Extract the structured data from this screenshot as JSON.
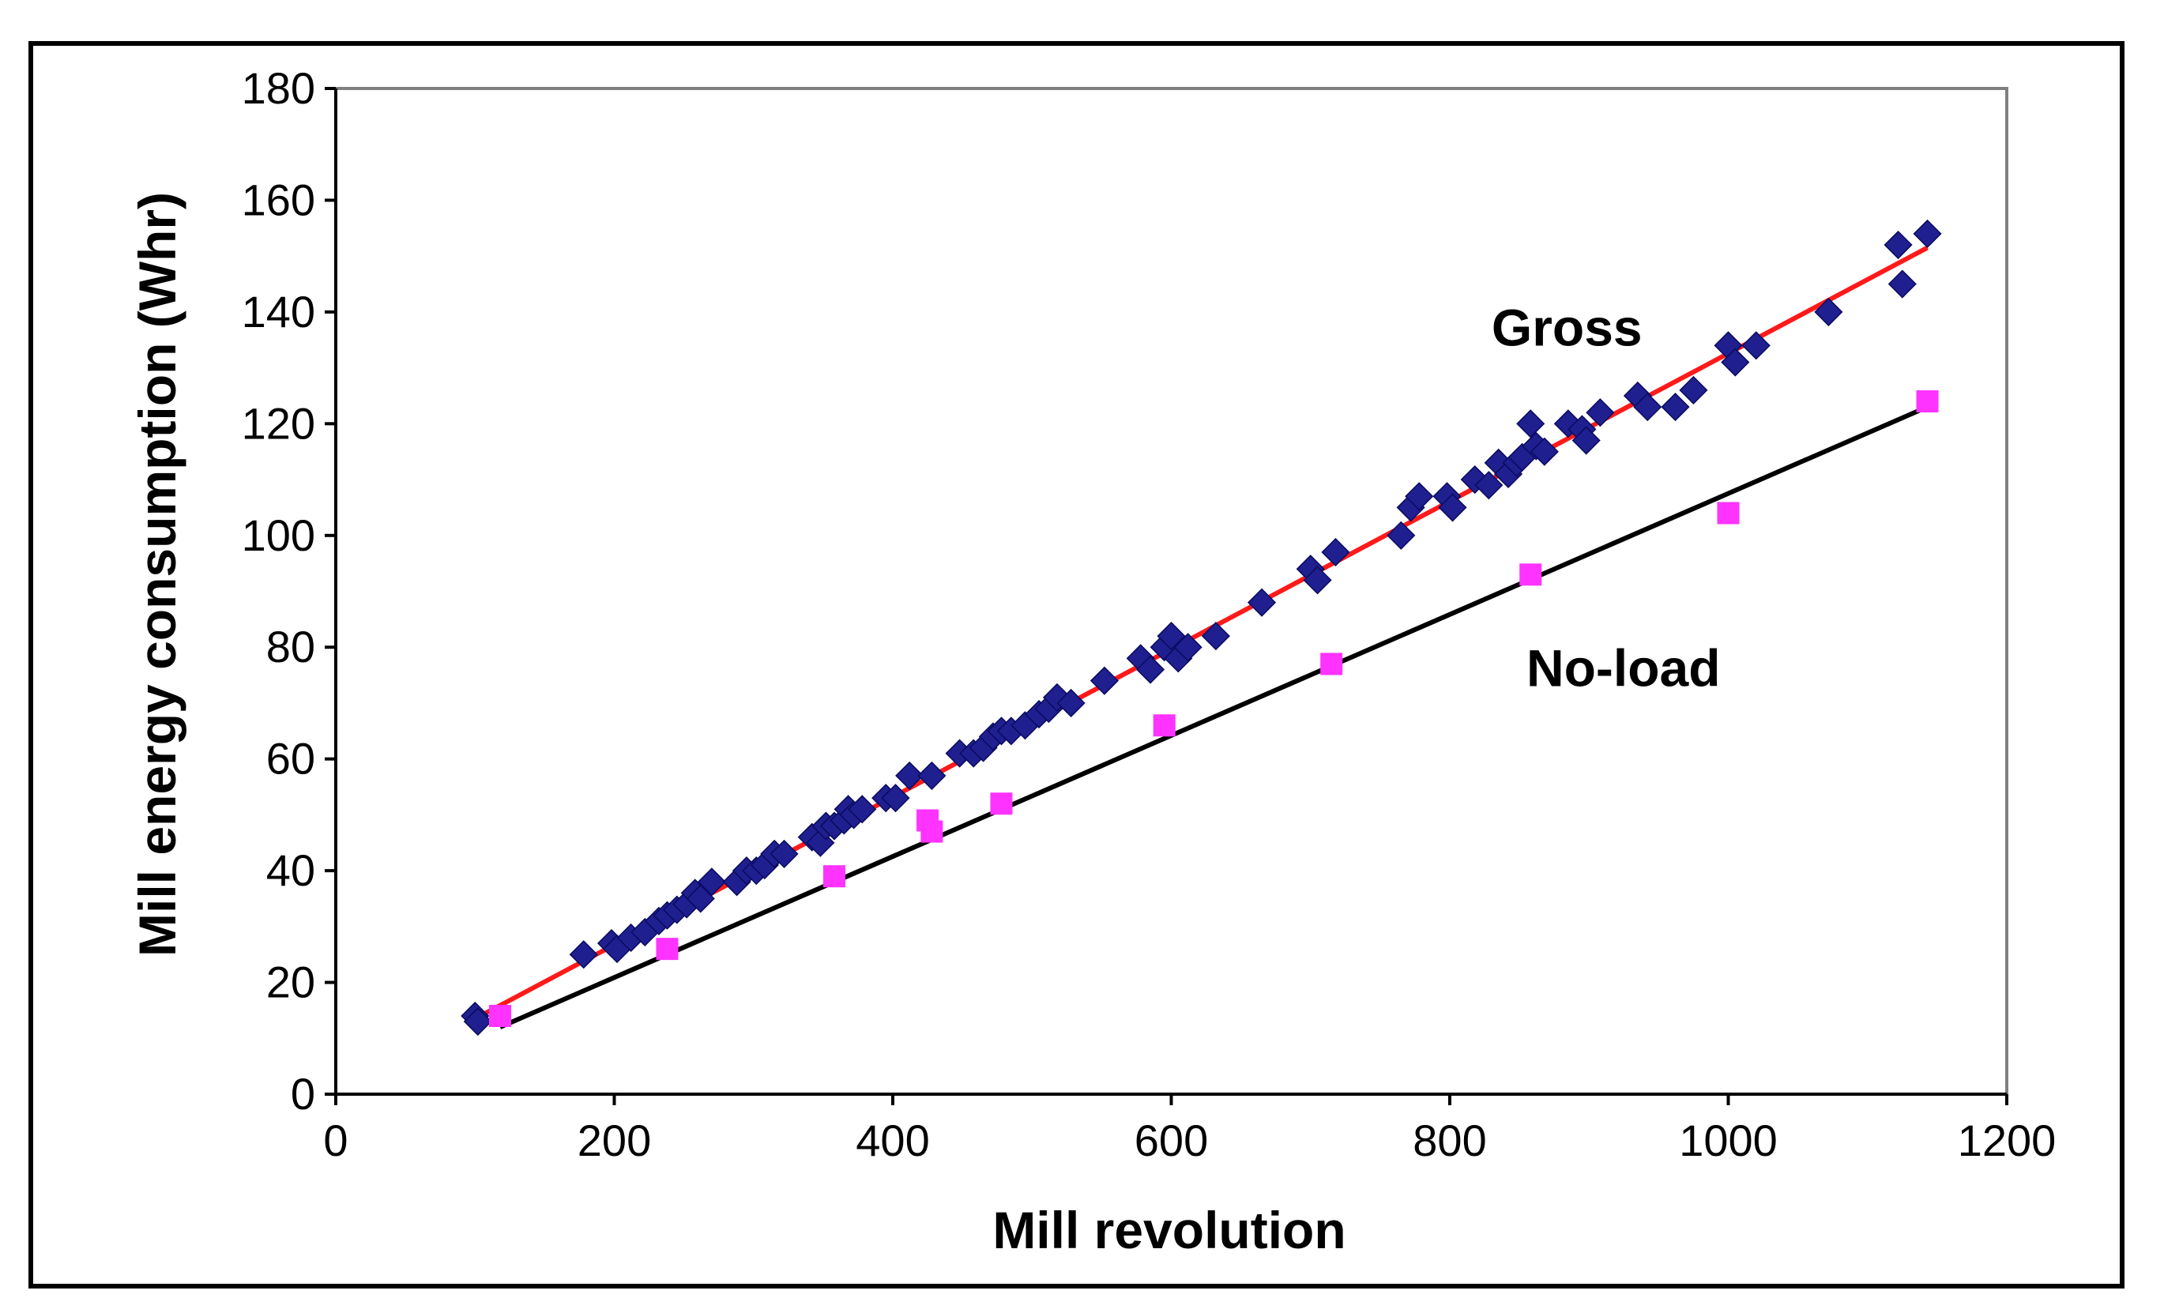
{
  "chart_data": {
    "type": "scatter",
    "title": "",
    "xlabel": "Mill revolution",
    "ylabel": "Mill energy consumption (Whr)",
    "xlim": [
      0,
      1200
    ],
    "ylim": [
      0,
      180
    ],
    "xticks": [
      0,
      200,
      400,
      600,
      800,
      1000,
      1200
    ],
    "yticks": [
      0,
      20,
      40,
      60,
      80,
      100,
      120,
      140,
      160,
      180
    ],
    "grid": false,
    "series": [
      {
        "name": "Gross",
        "marker": "diamond",
        "color": "#1f1f8f",
        "points": [
          [
            100,
            14
          ],
          [
            102,
            13
          ],
          [
            178,
            25
          ],
          [
            198,
            27
          ],
          [
            202,
            26
          ],
          [
            212,
            28
          ],
          [
            222,
            29
          ],
          [
            232,
            31
          ],
          [
            238,
            32
          ],
          [
            245,
            33
          ],
          [
            252,
            34
          ],
          [
            258,
            36
          ],
          [
            262,
            35
          ],
          [
            270,
            38
          ],
          [
            288,
            38
          ],
          [
            295,
            40
          ],
          [
            302,
            40
          ],
          [
            308,
            41
          ],
          [
            315,
            43
          ],
          [
            322,
            43
          ],
          [
            342,
            46
          ],
          [
            348,
            45
          ],
          [
            352,
            48
          ],
          [
            358,
            48
          ],
          [
            365,
            49
          ],
          [
            368,
            51
          ],
          [
            372,
            50
          ],
          [
            378,
            51
          ],
          [
            395,
            53
          ],
          [
            402,
            53
          ],
          [
            412,
            57
          ],
          [
            428,
            57
          ],
          [
            448,
            61
          ],
          [
            458,
            61
          ],
          [
            465,
            62
          ],
          [
            472,
            64
          ],
          [
            478,
            65
          ],
          [
            485,
            65
          ],
          [
            495,
            66
          ],
          [
            505,
            68
          ],
          [
            512,
            69
          ],
          [
            518,
            71
          ],
          [
            528,
            70
          ],
          [
            552,
            74
          ],
          [
            578,
            78
          ],
          [
            585,
            76
          ],
          [
            595,
            80
          ],
          [
            600,
            82
          ],
          [
            605,
            78
          ],
          [
            612,
            80
          ],
          [
            632,
            82
          ],
          [
            665,
            88
          ],
          [
            700,
            94
          ],
          [
            705,
            92
          ],
          [
            718,
            97
          ],
          [
            765,
            100
          ],
          [
            772,
            105
          ],
          [
            778,
            107
          ],
          [
            798,
            107
          ],
          [
            802,
            105
          ],
          [
            818,
            110
          ],
          [
            828,
            109
          ],
          [
            835,
            113
          ],
          [
            842,
            111
          ],
          [
            848,
            113
          ],
          [
            852,
            114
          ],
          [
            858,
            120
          ],
          [
            862,
            116
          ],
          [
            868,
            115
          ],
          [
            885,
            120
          ],
          [
            895,
            119
          ],
          [
            898,
            117
          ],
          [
            908,
            122
          ],
          [
            935,
            125
          ],
          [
            942,
            123
          ],
          [
            962,
            123
          ],
          [
            975,
            126
          ],
          [
            1000,
            134
          ],
          [
            1005,
            131
          ],
          [
            1020,
            134
          ],
          [
            1072,
            140
          ],
          [
            1122,
            152
          ],
          [
            1125,
            145
          ],
          [
            1143,
            154
          ]
        ],
        "trendline": [
          [
            100,
            13.5
          ],
          [
            1143,
            151.5
          ]
        ],
        "trendline_color": "#ff1a1a"
      },
      {
        "name": "No-load",
        "marker": "square",
        "color": "#ff33ff",
        "points": [
          [
            118,
            14
          ],
          [
            238,
            26
          ],
          [
            358,
            39
          ],
          [
            425,
            49
          ],
          [
            428,
            47
          ],
          [
            478,
            52
          ],
          [
            595,
            66
          ],
          [
            715,
            77
          ],
          [
            858,
            93
          ],
          [
            1000,
            104
          ],
          [
            1143,
            124
          ]
        ],
        "trendline": [
          [
            118,
            12
          ],
          [
            1143,
            123
          ]
        ],
        "trendline_color": "#000000"
      }
    ],
    "annotations": [
      {
        "text": "Gross",
        "x": 830,
        "y": 134
      },
      {
        "text": "No-load",
        "x": 855,
        "y": 73
      }
    ]
  }
}
